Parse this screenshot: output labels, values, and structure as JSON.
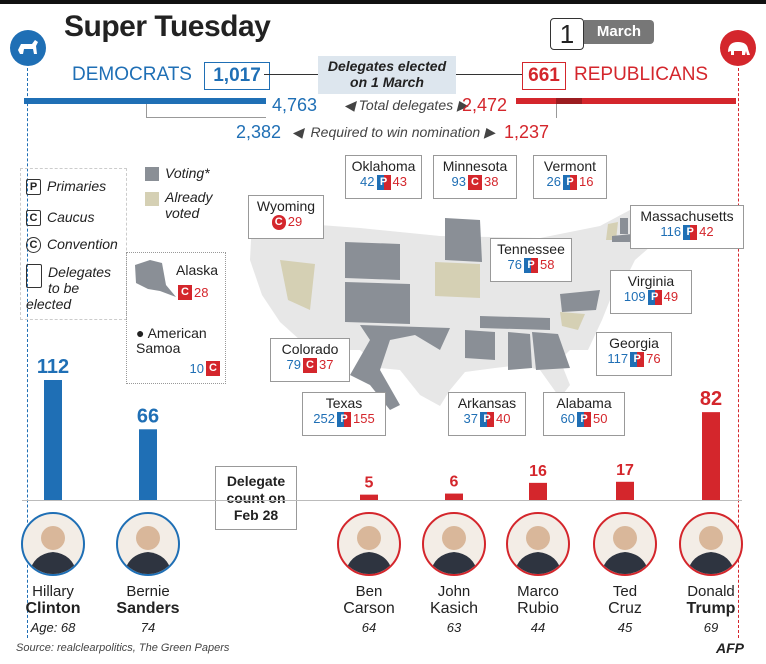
{
  "header": {
    "title": "Super Tuesday",
    "date_day": "1",
    "date_month": "March"
  },
  "parties": {
    "dem_label": "DEMOCRATS",
    "rep_label": "REPUBLICANS",
    "dem_color": "#1f6fb5",
    "rep_color": "#d4262c"
  },
  "delegates": {
    "elected_label": "Delegates elected on 1 March",
    "dem_elected": "1,017",
    "rep_elected": "661",
    "total_label": "Total delegates",
    "dem_total": "4,763",
    "rep_total": "2,472",
    "required_label": "Required to win nomination",
    "dem_required": "2,382",
    "rep_required": "1,237"
  },
  "legend": {
    "primaries": "Primaries",
    "caucus": "Caucus",
    "convention": "Convention",
    "delegates_to_be_elected": "Delegates to be elected",
    "voting": "Voting*",
    "already_voted": "Already voted",
    "voting_color": "#8a8f96",
    "already_color": "#d5d0b4"
  },
  "states": [
    {
      "name": "Oklahoma",
      "dem": "42",
      "type": "P",
      "rep": "43"
    },
    {
      "name": "Minnesota",
      "dem": "93",
      "type": "C",
      "rep": "38"
    },
    {
      "name": "Vermont",
      "dem": "26",
      "type": "P",
      "rep": "16"
    },
    {
      "name": "Wyoming",
      "dem": "",
      "type": "C",
      "rep": "29"
    },
    {
      "name": "Massachusetts",
      "dem": "116",
      "type": "P",
      "rep": "42"
    },
    {
      "name": "Tennessee",
      "dem": "76",
      "type": "P",
      "rep": "58"
    },
    {
      "name": "Alaska",
      "dem": "",
      "type": "C",
      "rep": "28"
    },
    {
      "name": "Virginia",
      "dem": "109",
      "type": "P",
      "rep": "49"
    },
    {
      "name": "American Samoa",
      "dem": "10",
      "type": "C",
      "rep": ""
    },
    {
      "name": "Colorado",
      "dem": "79",
      "type": "C",
      "rep": "37"
    },
    {
      "name": "Georgia",
      "dem": "117",
      "type": "P",
      "rep": "76"
    },
    {
      "name": "Texas",
      "dem": "252",
      "type": "P",
      "rep": "155"
    },
    {
      "name": "Arkansas",
      "dem": "37",
      "type": "P",
      "rep": "40"
    },
    {
      "name": "Alabama",
      "dem": "60",
      "type": "P",
      "rep": "50"
    }
  ],
  "count_label": "Delegate count on Feb 28",
  "chart_data": {
    "type": "bar",
    "title": "Delegate count on Feb 28",
    "categories": [
      "Hillary Clinton",
      "Bernie Sanders",
      "Ben Carson",
      "John Kasich",
      "Marco Rubio",
      "Ted Cruz",
      "Donald Trump"
    ],
    "values": [
      112,
      66,
      5,
      6,
      16,
      17,
      82
    ],
    "parties": [
      "dem",
      "dem",
      "rep",
      "rep",
      "rep",
      "rep",
      "rep"
    ],
    "ylim": [
      0,
      112
    ]
  },
  "candidates": [
    {
      "first": "Hillary",
      "last": "Clinton",
      "age": "Age: 68",
      "party": "dem"
    },
    {
      "first": "Bernie",
      "last": "Sanders",
      "age": "74",
      "party": "dem"
    },
    {
      "first": "Ben",
      "last": "Carson",
      "age": "64",
      "party": "rep"
    },
    {
      "first": "John",
      "last": "Kasich",
      "age": "63",
      "party": "rep"
    },
    {
      "first": "Marco",
      "last": "Rubio",
      "age": "44",
      "party": "rep"
    },
    {
      "first": "Ted",
      "last": "Cruz",
      "age": "45",
      "party": "rep"
    },
    {
      "first": "Donald",
      "last": "Trump",
      "age": "69",
      "party": "rep"
    }
  ],
  "footer": {
    "source": "Source: realclearpolitics, The Green Papers",
    "credit": "AFP"
  }
}
